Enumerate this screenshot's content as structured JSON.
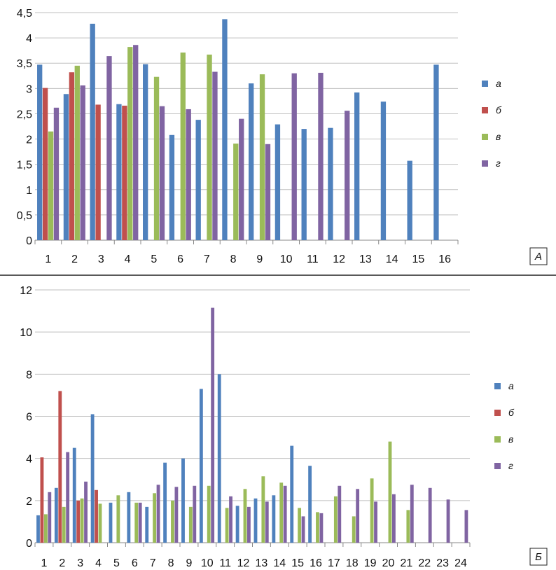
{
  "chart_data": [
    {
      "type": "bar",
      "panel_label": "А",
      "categories": [
        "1",
        "2",
        "3",
        "4",
        "5",
        "6",
        "7",
        "8",
        "9",
        "10",
        "11",
        "12",
        "13",
        "14",
        "15",
        "16"
      ],
      "ylim": [
        0,
        4.5
      ],
      "yticks": [
        "0",
        "0,5",
        "1",
        "1,5",
        "2",
        "2,5",
        "3",
        "3,5",
        "4",
        "4,5"
      ],
      "grid": true,
      "legend_position": "right",
      "series": [
        {
          "name": "а",
          "color": "#4F81BD",
          "values": [
            3.47,
            2.89,
            4.28,
            2.69,
            3.48,
            2.08,
            2.38,
            4.37,
            3.1,
            2.29,
            2.2,
            2.22,
            2.92,
            2.74,
            1.57,
            3.47
          ]
        },
        {
          "name": "б",
          "color": "#C0504D",
          "values": [
            3.01,
            3.32,
            2.68,
            2.66,
            null,
            null,
            null,
            null,
            null,
            null,
            null,
            null,
            null,
            null,
            null,
            null
          ]
        },
        {
          "name": "в",
          "color": "#9BBB59",
          "values": [
            2.15,
            3.45,
            null,
            3.82,
            3.23,
            3.71,
            3.67,
            1.91,
            3.28,
            null,
            null,
            null,
            null,
            null,
            null,
            null
          ]
        },
        {
          "name": "г",
          "color": "#8064A2",
          "values": [
            2.62,
            3.06,
            3.64,
            3.86,
            2.65,
            2.59,
            3.33,
            2.4,
            1.9,
            3.3,
            3.31,
            2.56,
            null,
            null,
            null,
            null
          ]
        }
      ]
    },
    {
      "type": "bar",
      "panel_label": "Б",
      "categories": [
        "1",
        "2",
        "3",
        "4",
        "5",
        "6",
        "7",
        "8",
        "9",
        "10",
        "11",
        "12",
        "13",
        "14",
        "15",
        "16",
        "17",
        "18",
        "19",
        "20",
        "21",
        "22",
        "23",
        "24"
      ],
      "ylim": [
        0,
        12
      ],
      "yticks": [
        "0",
        "2",
        "4",
        "6",
        "8",
        "10",
        "12"
      ],
      "grid": true,
      "legend_position": "right",
      "series": [
        {
          "name": "а",
          "color": "#4F81BD",
          "values": [
            1.3,
            2.6,
            4.5,
            6.1,
            1.9,
            2.4,
            1.7,
            3.8,
            4.0,
            7.3,
            8.0,
            1.75,
            2.1,
            2.25,
            4.6,
            3.65,
            null,
            null,
            null,
            null,
            null,
            null,
            null,
            null
          ]
        },
        {
          "name": "б",
          "color": "#C0504D",
          "values": [
            4.05,
            7.2,
            2.0,
            2.5,
            null,
            null,
            null,
            null,
            null,
            null,
            null,
            null,
            null,
            null,
            null,
            null,
            null,
            null,
            null,
            null,
            null,
            null,
            null,
            null
          ]
        },
        {
          "name": "в",
          "color": "#9BBB59",
          "values": [
            1.35,
            1.7,
            2.1,
            1.85,
            2.25,
            1.9,
            2.35,
            2.0,
            1.7,
            2.7,
            1.65,
            2.55,
            3.15,
            2.85,
            1.65,
            1.45,
            2.2,
            1.25,
            3.05,
            4.8,
            1.55,
            null,
            null,
            null
          ]
        },
        {
          "name": "г",
          "color": "#8064A2",
          "values": [
            2.4,
            4.3,
            2.9,
            null,
            null,
            1.9,
            2.75,
            2.65,
            2.7,
            11.15,
            2.2,
            1.7,
            1.95,
            2.7,
            1.25,
            1.4,
            2.7,
            2.55,
            1.95,
            2.3,
            2.75,
            2.6,
            2.05,
            1.55
          ]
        }
      ]
    }
  ]
}
